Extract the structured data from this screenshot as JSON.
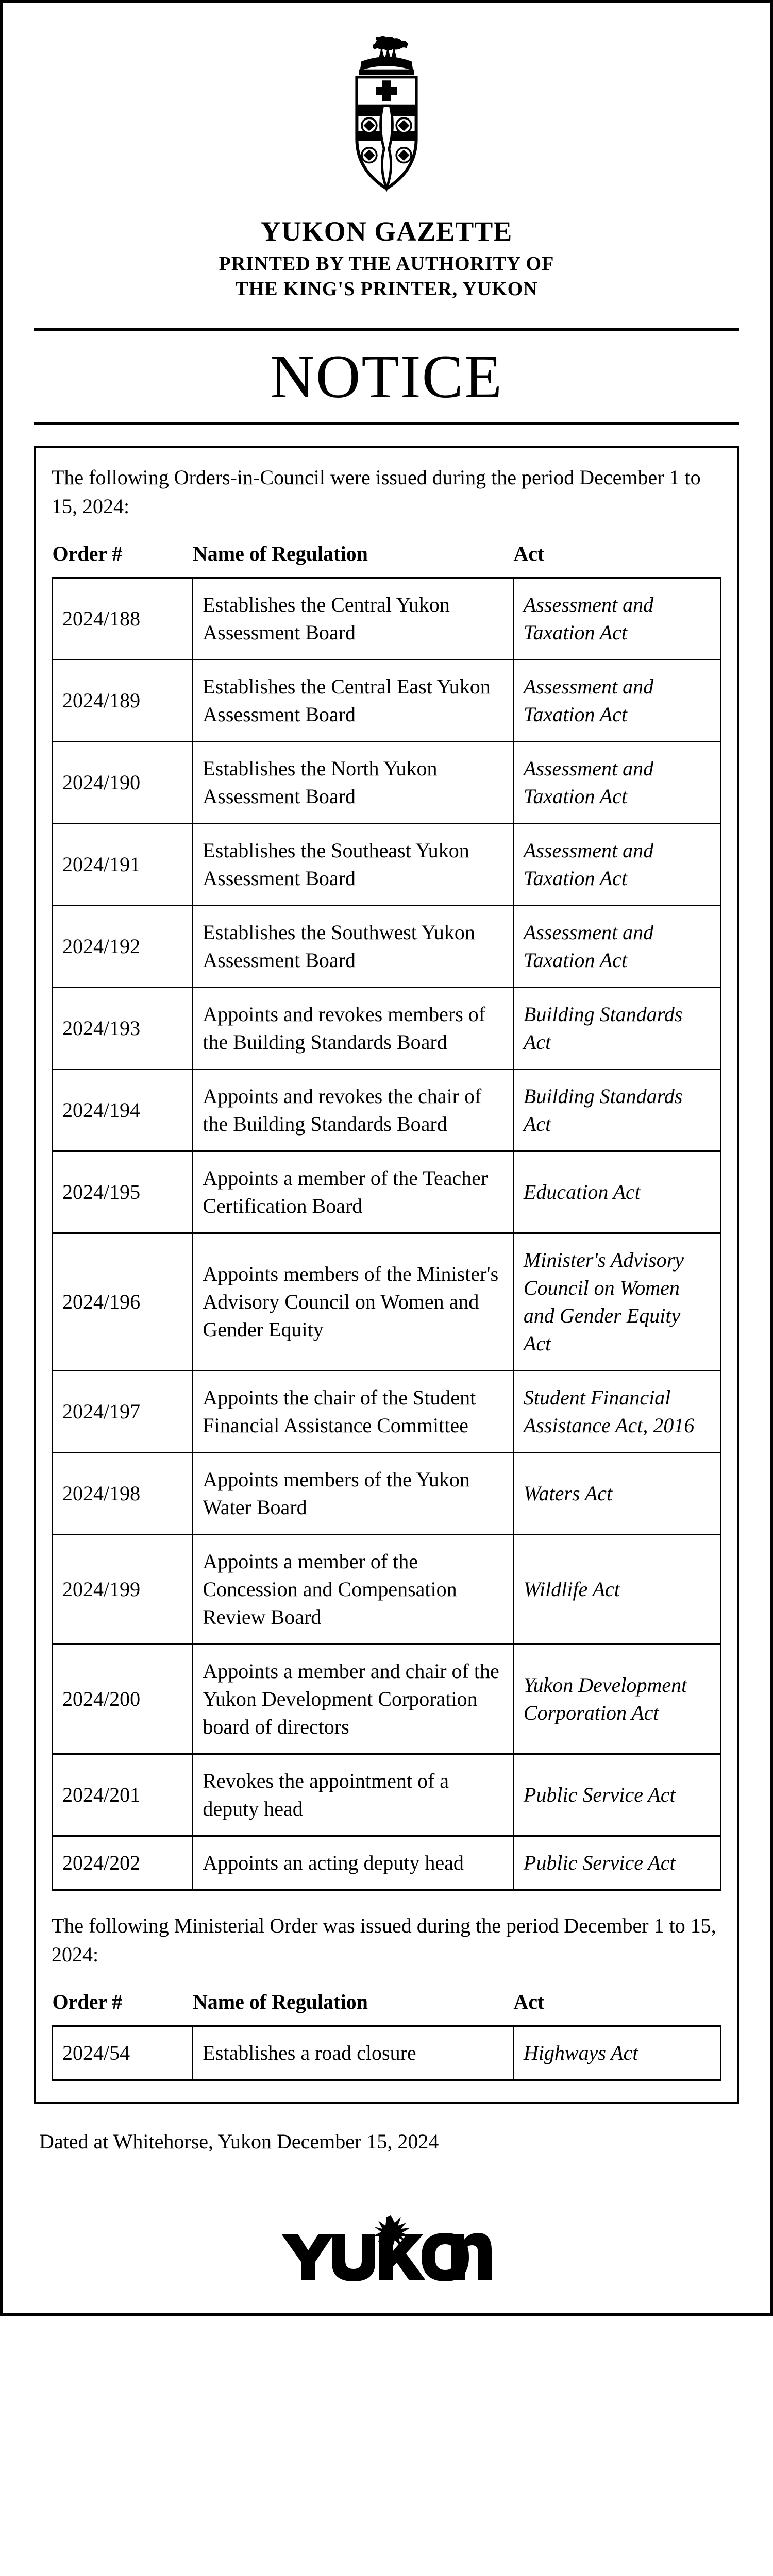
{
  "gazette_title": "YUKON GAZETTE",
  "gazette_sub1": "PRINTED BY THE AUTHORITY OF",
  "gazette_sub2": "THE KING'S PRINTER, YUKON",
  "notice_word": "NOTICE",
  "intro_orders": "The following Orders-in-Council were issued during the period December 1 to 15, 2024:",
  "intro_ministerial": "The following Ministerial Order was issued during the period December 1 to 15, 2024:",
  "col_headers": {
    "order": "Order #",
    "name": "Name of Regulation",
    "act": "Act"
  },
  "orders": [
    {
      "num": "2024/188",
      "name": "Establishes the Central Yukon Assessment Board",
      "act": "Assessment and Taxation Act"
    },
    {
      "num": "2024/189",
      "name": "Establishes the Central East Yukon Assessment Board",
      "act": "Assessment and Taxation Act"
    },
    {
      "num": "2024/190",
      "name": "Establishes the North Yukon Assessment Board",
      "act": "Assessment and Taxation Act"
    },
    {
      "num": "2024/191",
      "name": "Establishes the Southeast Yukon Assessment Board",
      "act": "Assessment and Taxation Act"
    },
    {
      "num": "2024/192",
      "name": "Establishes the Southwest Yukon Assessment Board",
      "act": "Assessment and Taxation Act"
    },
    {
      "num": "2024/193",
      "name": "Appoints and revokes members of the Building Standards Board",
      "act": "Building Standards Act"
    },
    {
      "num": "2024/194",
      "name": "Appoints and revokes the chair of the Building Standards Board",
      "act": "Building Standards Act"
    },
    {
      "num": "2024/195",
      "name": "Appoints a member of the Teacher Certification Board",
      "act": "Education Act"
    },
    {
      "num": "2024/196",
      "name": "Appoints members of the Minister's Advisory Council on Women and Gender Equity",
      "act": "Minister's Advisory Council on Women and Gender Equity Act"
    },
    {
      "num": "2024/197",
      "name": "Appoints the chair of the Student Financial Assistance Committee",
      "act": "Student Financial Assistance Act, 2016"
    },
    {
      "num": "2024/198",
      "name": "Appoints members of the Yukon Water Board",
      "act": "Waters Act"
    },
    {
      "num": "2024/199",
      "name": "Appoints a member of the Concession and Compensation Review Board",
      "act": "Wildlife Act"
    },
    {
      "num": "2024/200",
      "name": "Appoints a member and chair of the Yukon Development Corporation board of directors",
      "act": "Yukon Development Corporation Act"
    },
    {
      "num": "2024/201",
      "name": "Revokes the appointment of a deputy head",
      "act": "Public Service Act"
    },
    {
      "num": "2024/202",
      "name": "Appoints an acting deputy head",
      "act": "Public Service Act"
    }
  ],
  "ministerial_orders": [
    {
      "num": "2024/54",
      "name": "Establishes a road closure",
      "act": "Highways Act"
    }
  ],
  "dated_line": "Dated at Whitehorse, Yukon December 15, 2024"
}
